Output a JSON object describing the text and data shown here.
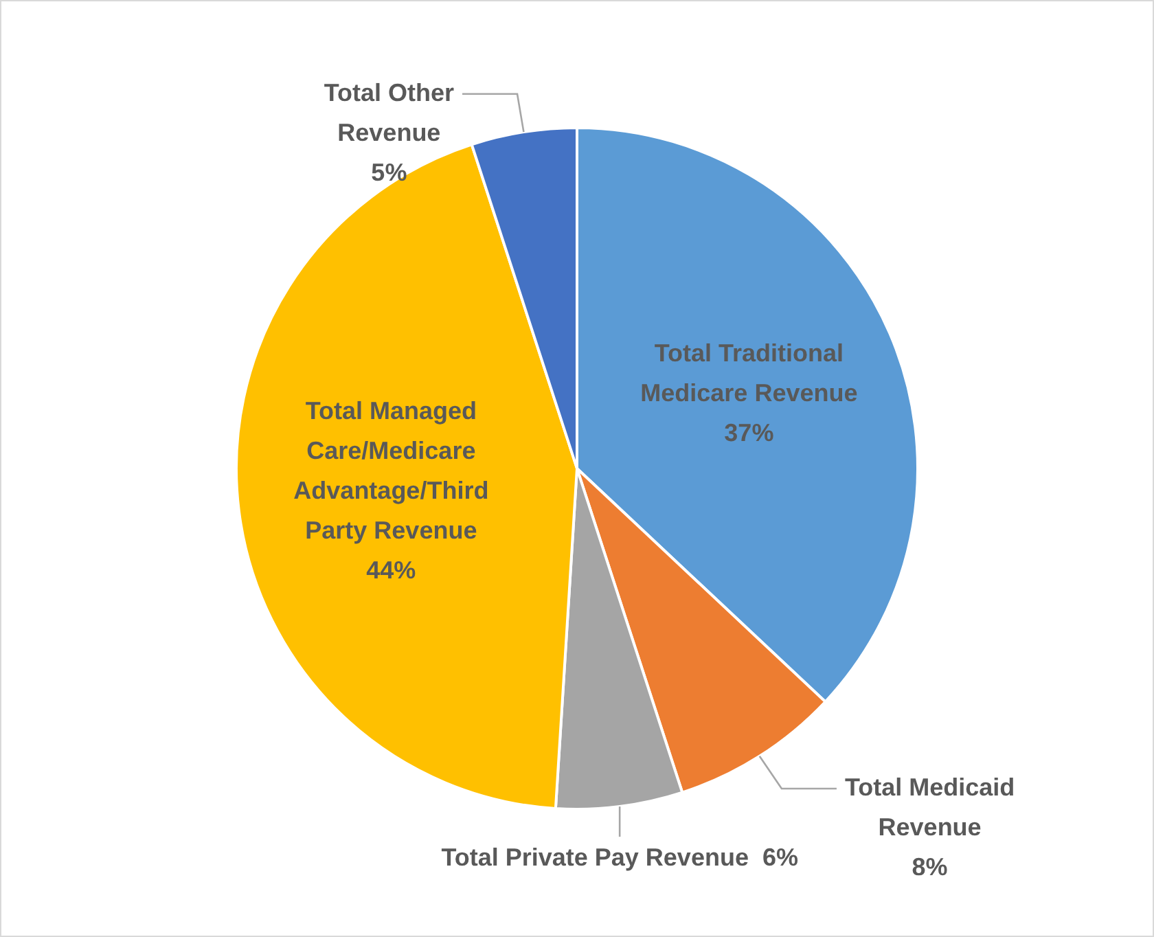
{
  "chart_data": {
    "type": "pie",
    "categories": [
      "Total Traditional Medicare Revenue",
      "Total Medicaid Revenue",
      "Total Private Pay Revenue",
      "Total Managed Care/Medicare Advantage/Third Party Revenue",
      "Total Other Revenue"
    ],
    "values": [
      37,
      8,
      6,
      44,
      5
    ],
    "colors": [
      "#5b9bd5",
      "#ed7d31",
      "#a5a5a5",
      "#ffc000",
      "#4472c4"
    ],
    "value_labels": [
      "37%",
      "8%",
      "6%",
      "44%",
      "5%"
    ],
    "legend": false
  }
}
